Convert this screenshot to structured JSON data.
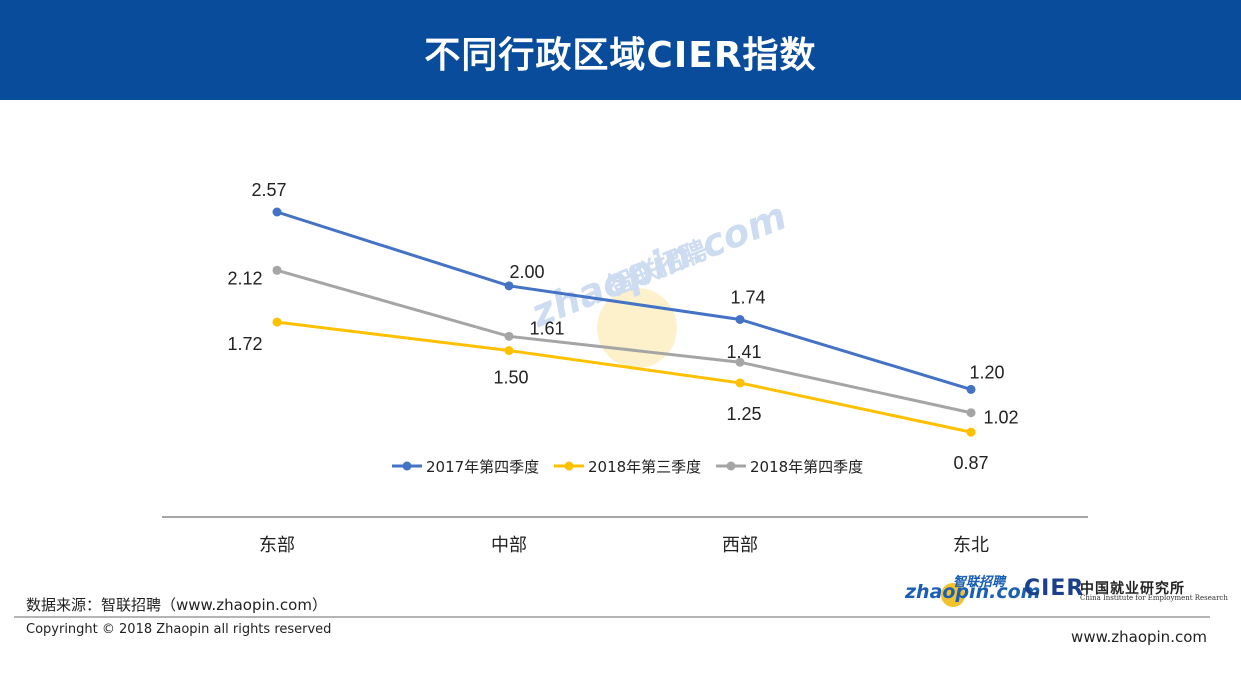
{
  "header": {
    "title": "不同行政区域CIER指数"
  },
  "watermark": {
    "text_cn": "智联招聘",
    "text_en": "zhaopin.com"
  },
  "chart_data": {
    "type": "line",
    "title": "",
    "xlabel": "",
    "ylabel": "",
    "categories": [
      "东部",
      "中部",
      "西部",
      "东北"
    ],
    "ylim": [
      0.5,
      3.0
    ],
    "grid": false,
    "legend_position": "bottom",
    "series": [
      {
        "name": "2017年第四季度",
        "color": "#4472c4",
        "values": [
          2.57,
          2.0,
          1.74,
          1.2
        ],
        "labels": [
          "2.57",
          "2.00",
          "1.74",
          "1.20"
        ]
      },
      {
        "name": "2018年第三季度",
        "color": "#ffc000",
        "values": [
          1.72,
          1.5,
          1.25,
          0.87
        ],
        "labels": [
          "1.72",
          "1.50",
          "1.25",
          "0.87"
        ]
      },
      {
        "name": "2018年第四季度",
        "color": "#a5a5a5",
        "values": [
          2.12,
          1.61,
          1.41,
          1.02
        ],
        "labels": [
          "2.12",
          "1.61",
          "1.41",
          "1.02"
        ]
      }
    ]
  },
  "footer": {
    "source": "数据来源：智联招聘（www.zhaopin.com）",
    "copyright": "Copyringht © 2018 Zhaopin all rights reserved",
    "website": "www.zhaopin.com",
    "logo_zhaopin_cn": "智联招聘",
    "logo_zhaopin_en": "zhaopin.com",
    "logo_cier": "CIER",
    "logo_cier_cn": "中国就业研究所",
    "logo_cier_en": "China Institute for Employment Research"
  }
}
